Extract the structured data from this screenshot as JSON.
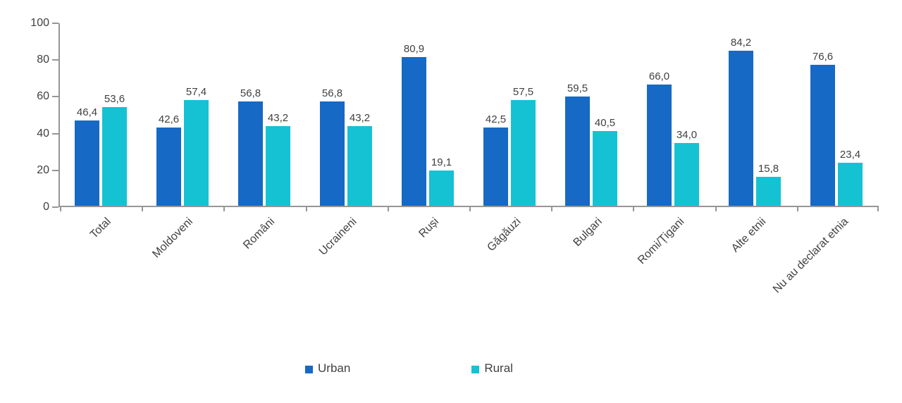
{
  "chart_data": {
    "type": "bar",
    "title": "",
    "categories": [
      "Total",
      "Moldoveni",
      "Români",
      "Ucraineni",
      "Ruși",
      "Găgăuzi",
      "Bulgari",
      "Romi/Țigani",
      "Alte etnii",
      "Nu au declarat etnia"
    ],
    "series": [
      {
        "name": "Urban",
        "color": "#1669C4",
        "values": [
          46.4,
          42.6,
          56.8,
          56.8,
          80.9,
          42.5,
          59.5,
          66.0,
          84.2,
          76.6
        ],
        "labels": [
          "46,4",
          "42,6",
          "56,8",
          "56,8",
          "80,9",
          "42,5",
          "59,5",
          "66,0",
          "84,2",
          "76,6"
        ]
      },
      {
        "name": "Rural",
        "color": "#15C2D3",
        "values": [
          53.6,
          57.4,
          43.2,
          43.2,
          19.1,
          57.5,
          40.5,
          34.0,
          15.8,
          23.4
        ],
        "labels": [
          "53,6",
          "57,4",
          "43,2",
          "43,2",
          "19,1",
          "57,5",
          "40,5",
          "34,0",
          "15,8",
          "23,4"
        ]
      }
    ],
    "ylim": [
      0,
      100
    ],
    "yticks": [
      0,
      20,
      40,
      60,
      80,
      100
    ],
    "grid": false,
    "legend_position": "bottom",
    "axis_color": "#969696",
    "text_color": "#404040"
  }
}
